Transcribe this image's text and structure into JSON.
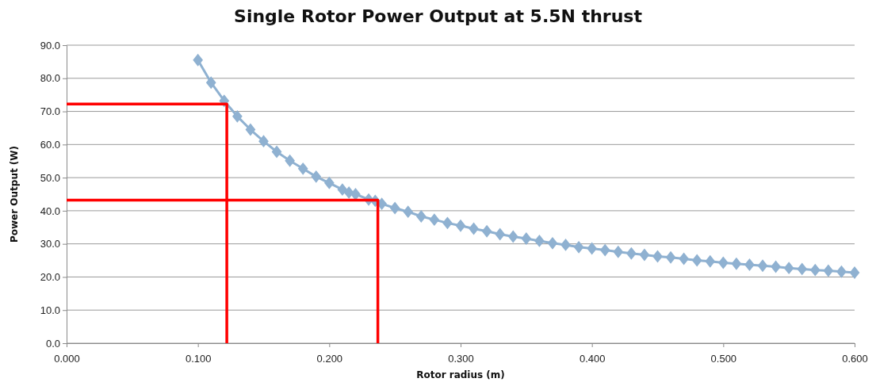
{
  "chart_data": {
    "type": "line",
    "title": "Single Rotor Power Output at 5.5N thrust",
    "xlabel": "Rotor radius (m)",
    "ylabel": "Power Output (W)",
    "xlim": [
      0,
      0.6
    ],
    "ylim": [
      0,
      90
    ],
    "xticks": [
      {
        "value": 0,
        "label": "0.000"
      },
      {
        "value": 0.1,
        "label": "0.100"
      },
      {
        "value": 0.2,
        "label": "0.200"
      },
      {
        "value": 0.3,
        "label": "0.300"
      },
      {
        "value": 0.4,
        "label": "0.400"
      },
      {
        "value": 0.5,
        "label": "0.500"
      },
      {
        "value": 0.6,
        "label": "0.600"
      }
    ],
    "yticks": [
      {
        "value": 0,
        "label": "0.0"
      },
      {
        "value": 10,
        "label": "10.0"
      },
      {
        "value": 20,
        "label": "20.0"
      },
      {
        "value": 30,
        "label": "30.0"
      },
      {
        "value": 40,
        "label": "40.0"
      },
      {
        "value": 50,
        "label": "50.0"
      },
      {
        "value": 60,
        "label": "60.0"
      },
      {
        "value": 70,
        "label": "70.0"
      },
      {
        "value": 80,
        "label": "80.0"
      },
      {
        "value": 90,
        "label": "90.0"
      }
    ],
    "grid": "y",
    "line_style": "solid",
    "series": [
      {
        "color": "#8fb1d1",
        "marker": "diamond",
        "x": [
          0.1,
          0.11,
          0.12,
          0.13,
          0.14,
          0.15,
          0.16,
          0.17,
          0.18,
          0.19,
          0.2,
          0.21,
          0.215,
          0.22,
          0.23,
          0.235,
          0.24,
          0.25,
          0.26,
          0.27,
          0.28,
          0.29,
          0.3,
          0.31,
          0.32,
          0.33,
          0.34,
          0.35,
          0.36,
          0.37,
          0.38,
          0.39,
          0.4,
          0.41,
          0.42,
          0.43,
          0.44,
          0.45,
          0.46,
          0.47,
          0.48,
          0.49,
          0.5,
          0.51,
          0.52,
          0.53,
          0.54,
          0.55,
          0.56,
          0.57,
          0.58,
          0.59,
          0.6
        ],
        "values": [
          85.5,
          78.7,
          73.2,
          68.5,
          64.5,
          61.0,
          57.8,
          55.1,
          52.7,
          50.3,
          48.4,
          46.4,
          45.5,
          45.0,
          43.4,
          43.0,
          42.1,
          40.8,
          39.7,
          38.3,
          37.3,
          36.3,
          35.5,
          34.6,
          33.8,
          32.9,
          32.2,
          31.6,
          30.9,
          30.2,
          29.7,
          29.0,
          28.6,
          28.1,
          27.6,
          27.1,
          26.7,
          26.2,
          25.9,
          25.5,
          25.0,
          24.7,
          24.3,
          24.0,
          23.7,
          23.4,
          23.1,
          22.7,
          22.4,
          22.1,
          21.9,
          21.6,
          21.3
        ]
      },
      {
        "color": "#ff0000",
        "marker": "none",
        "x": [
          0,
          0.122,
          0.122
        ],
        "values": [
          72.2,
          72.2,
          0
        ]
      },
      {
        "color": "#ff0000",
        "marker": "none",
        "x": [
          0,
          0.237,
          0.237
        ],
        "values": [
          43.2,
          43.2,
          0
        ]
      }
    ]
  }
}
